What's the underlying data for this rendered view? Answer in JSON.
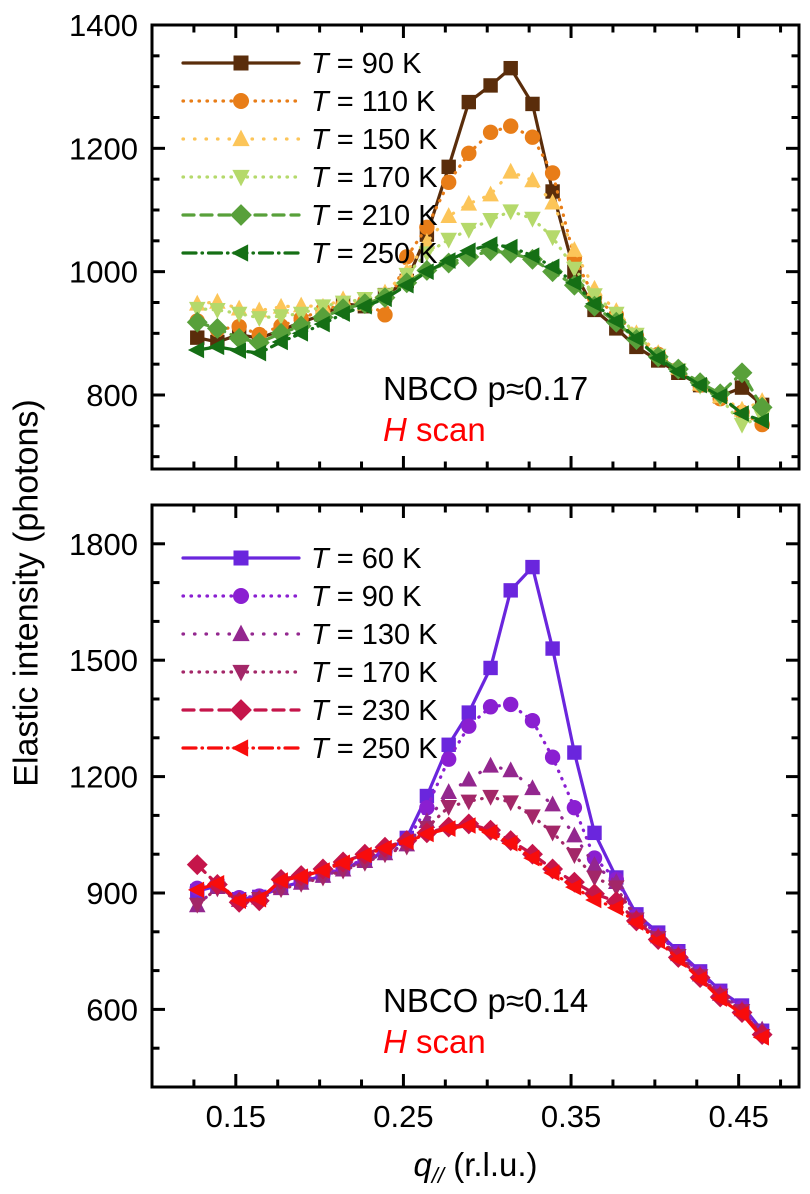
{
  "figure": {
    "ylabel": "Elastic intensity (photons)",
    "xlabel": {
      "var": "q",
      "sub": "//",
      "rest": " (r.l.u.)"
    },
    "background": "#ffffff",
    "axis_color": "#000000",
    "scan_color": "#ff0000"
  },
  "chart_data": [
    {
      "id": "top",
      "type": "line",
      "annotation": "NBCO p≈0.17",
      "scan_var": "H",
      "scan_rest": " scan",
      "xlim": [
        0.1,
        0.486
      ],
      "ylim": [
        680,
        1400
      ],
      "x_major": [
        0.15,
        0.25,
        0.35,
        0.45
      ],
      "x_tick_labels": [
        "0.15",
        "0.25",
        "0.35",
        "0.45"
      ],
      "show_x_tick_labels": false,
      "x_minor_step": 0.025,
      "y_major": [
        800,
        1000,
        1200,
        1400
      ],
      "y_minor_step": 50,
      "grid": false,
      "legend_position": "top-left",
      "x": [
        0.127,
        0.139,
        0.152,
        0.164,
        0.177,
        0.189,
        0.202,
        0.214,
        0.227,
        0.239,
        0.252,
        0.264,
        0.277,
        0.289,
        0.302,
        0.314,
        0.327,
        0.339,
        0.352,
        0.364,
        0.377,
        0.389,
        0.402,
        0.414,
        0.427,
        0.439,
        0.452,
        0.464
      ],
      "series": [
        {
          "label_var": "T",
          "label_rest": " = 90 K",
          "color": "#5a2d0b",
          "marker": "square",
          "line": "solid",
          "values": [
            893,
            886,
            898,
            892,
            905,
            918,
            930,
            948,
            944,
            962,
            985,
            1060,
            1170,
            1275,
            1302,
            1330,
            1272,
            1130,
            1000,
            938,
            908,
            878,
            856,
            836,
            816,
            798,
            812,
            784
          ]
        },
        {
          "label_var": "T",
          "label_rest": " = 110 K",
          "color": "#e87d18",
          "marker": "circle",
          "line": "dot",
          "values": [
            920,
            906,
            911,
            898,
            912,
            924,
            938,
            946,
            952,
            930,
            1024,
            1072,
            1145,
            1192,
            1226,
            1236,
            1218,
            1160,
            1022,
            958,
            930,
            896,
            866,
            842,
            816,
            794,
            772,
            752
          ]
        },
        {
          "label_var": "T",
          "label_rest": " = 150 K",
          "color": "#fcc559",
          "marker": "triangle-up",
          "line": "dot2",
          "values": [
            948,
            951,
            940,
            937,
            943,
            945,
            943,
            955,
            948,
            966,
            1000,
            1048,
            1090,
            1110,
            1125,
            1162,
            1148,
            1112,
            1035,
            972,
            936,
            900,
            868,
            844,
            818,
            798,
            776,
            790
          ]
        },
        {
          "label_var": "T",
          "label_rest": " = 170 K",
          "color": "#b5d96b",
          "marker": "triangle-down",
          "line": "dot",
          "values": [
            940,
            938,
            932,
            925,
            928,
            932,
            944,
            950,
            956,
            962,
            995,
            1030,
            1052,
            1068,
            1084,
            1098,
            1086,
            1056,
            1005,
            962,
            932,
            898,
            864,
            840,
            815,
            796,
            752,
            764
          ]
        },
        {
          "label_var": "T",
          "label_rest": " = 210 K",
          "color": "#58a03a",
          "marker": "diamond",
          "line": "dash",
          "values": [
            918,
            908,
            892,
            885,
            900,
            912,
            926,
            940,
            948,
            958,
            982,
            1002,
            1014,
            1024,
            1034,
            1030,
            1020,
            1000,
            978,
            944,
            918,
            890,
            862,
            842,
            820,
            802,
            836,
            780
          ]
        },
        {
          "label_var": "T",
          "label_rest": " = 250 K",
          "color": "#156f15",
          "marker": "triangle-left",
          "line": "dashdot",
          "values": [
            873,
            878,
            872,
            868,
            886,
            900,
            915,
            932,
            944,
            956,
            978,
            1000,
            1018,
            1034,
            1044,
            1040,
            1026,
            1008,
            982,
            948,
            920,
            892,
            860,
            838,
            816,
            798,
            770,
            758
          ]
        }
      ]
    },
    {
      "id": "bottom",
      "type": "line",
      "annotation": "NBCO p≈0.14",
      "scan_var": "H",
      "scan_rest": " scan",
      "xlim": [
        0.1,
        0.486
      ],
      "ylim": [
        400,
        1900
      ],
      "x_major": [
        0.15,
        0.25,
        0.35,
        0.45
      ],
      "x_tick_labels": [
        "0.15",
        "0.25",
        "0.35",
        "0.45"
      ],
      "show_x_tick_labels": true,
      "x_minor_step": 0.025,
      "y_major": [
        600,
        900,
        1200,
        1500,
        1800
      ],
      "y_minor_step": 100,
      "grid": false,
      "legend_position": "top-left",
      "x": [
        0.127,
        0.139,
        0.152,
        0.164,
        0.177,
        0.189,
        0.202,
        0.214,
        0.227,
        0.239,
        0.252,
        0.264,
        0.277,
        0.289,
        0.302,
        0.314,
        0.327,
        0.339,
        0.352,
        0.364,
        0.377,
        0.389,
        0.402,
        0.414,
        0.427,
        0.439,
        0.452,
        0.464
      ],
      "series": [
        {
          "label_var": "T",
          "label_rest": " = 60 K",
          "color": "#6a26dd",
          "marker": "square",
          "line": "solid",
          "values": [
            905,
            918,
            884,
            890,
            915,
            928,
            945,
            962,
            985,
            1005,
            1042,
            1150,
            1282,
            1365,
            1480,
            1680,
            1740,
            1530,
            1262,
            1055,
            940,
            845,
            798,
            750,
            698,
            648,
            610,
            545
          ]
        },
        {
          "label_var": "T",
          "label_rest": " = 90 K",
          "color": "#8a1fd1",
          "marker": "circle",
          "line": "dot",
          "values": [
            912,
            920,
            888,
            892,
            918,
            930,
            948,
            964,
            988,
            1008,
            1032,
            1120,
            1245,
            1330,
            1380,
            1386,
            1344,
            1250,
            1120,
            990,
            935,
            840,
            792,
            746,
            694,
            644,
            605,
            538
          ]
        },
        {
          "label_var": "T",
          "label_rest": " = 130 K",
          "color": "#93278f",
          "marker": "triangle-up",
          "line": "dot2",
          "values": [
            868,
            915,
            882,
            888,
            912,
            926,
            944,
            960,
            982,
            1002,
            1025,
            1085,
            1160,
            1192,
            1228,
            1216,
            1170,
            1128,
            1048,
            972,
            928,
            836,
            788,
            742,
            690,
            640,
            600,
            548
          ]
        },
        {
          "label_var": "T",
          "label_rest": " = 170 K",
          "color": "#a32768",
          "marker": "triangle-down",
          "line": "dot",
          "values": [
            870,
            912,
            878,
            885,
            910,
            924,
            940,
            958,
            978,
            1000,
            1020,
            1068,
            1122,
            1136,
            1148,
            1134,
            1098,
            1056,
            998,
            940,
            915,
            832,
            784,
            738,
            686,
            636,
            596,
            532
          ]
        },
        {
          "label_var": "T",
          "label_rest": " = 230 K",
          "color": "#c5154a",
          "marker": "diamond",
          "line": "dash",
          "values": [
            973,
            922,
            876,
            880,
            935,
            945,
            962,
            980,
            1000,
            1018,
            1035,
            1055,
            1070,
            1078,
            1062,
            1035,
            1000,
            962,
            928,
            898,
            878,
            828,
            780,
            734,
            682,
            632,
            592,
            535
          ]
        },
        {
          "label_var": "T",
          "label_rest": " = 250 K",
          "color": "#f80c0c",
          "marker": "triangle-left",
          "line": "dashdot",
          "values": [
            908,
            925,
            880,
            884,
            932,
            942,
            958,
            978,
            998,
            1016,
            1032,
            1052,
            1066,
            1074,
            1056,
            1028,
            990,
            952,
            915,
            882,
            862,
            824,
            776,
            730,
            678,
            628,
            588,
            528
          ]
        }
      ]
    }
  ]
}
